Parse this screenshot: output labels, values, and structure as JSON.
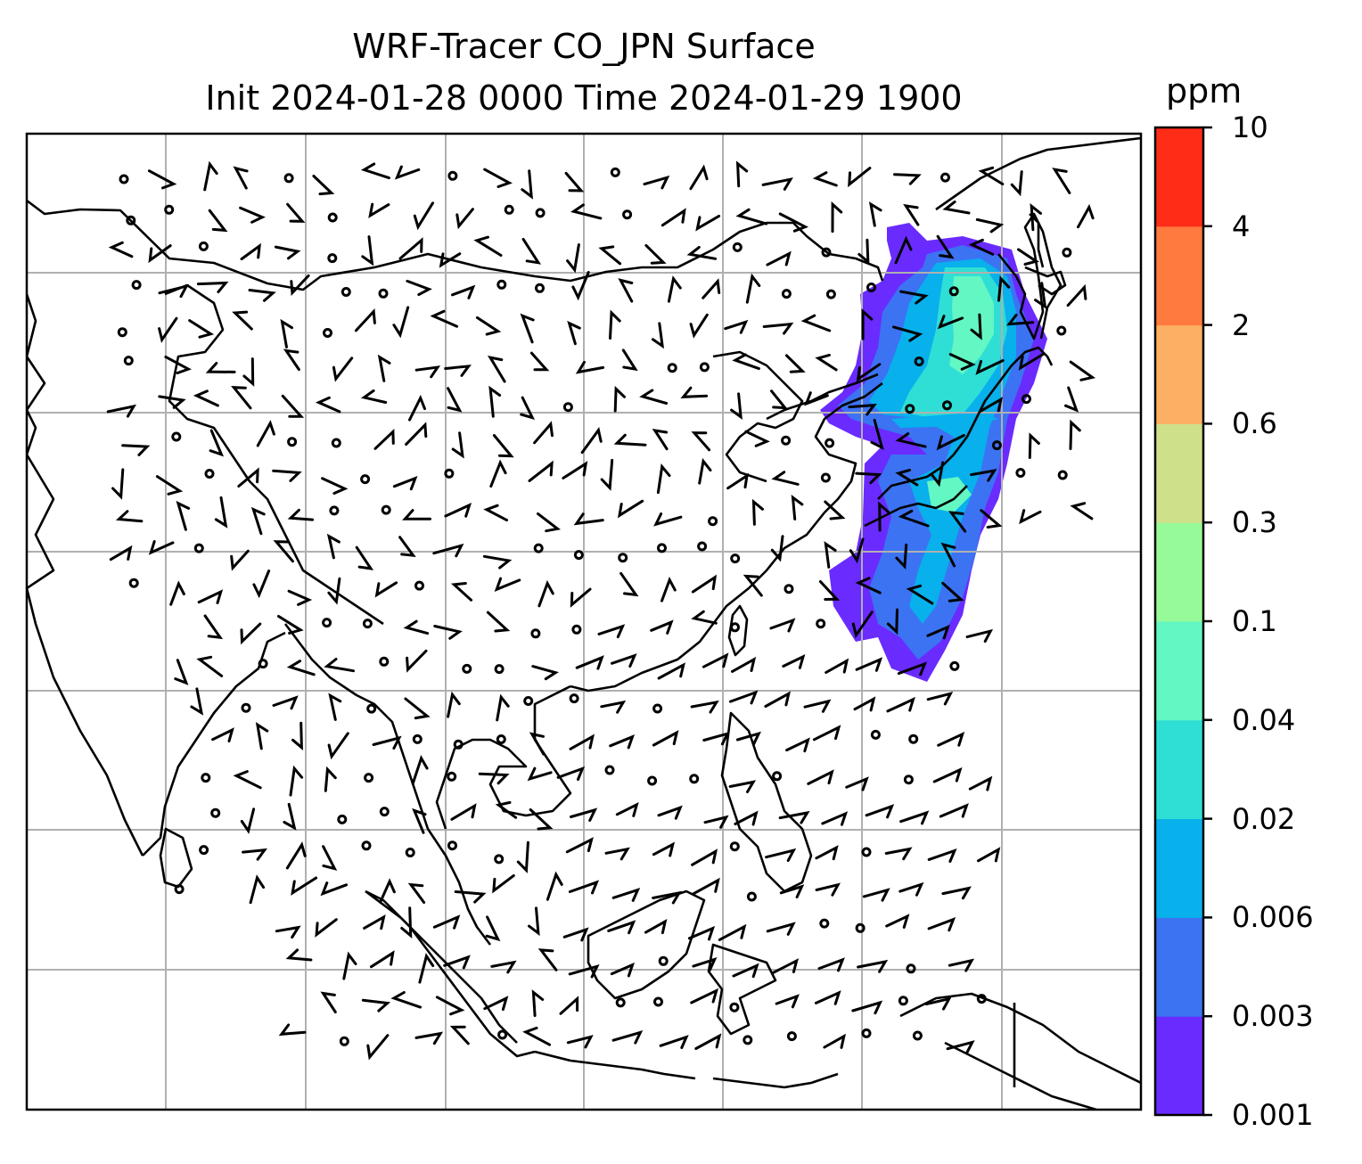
{
  "title": {
    "line1": "WRF-Tracer CO_JPN Surface",
    "line2": "Init 2024-01-28 0000 Time 2024-01-29 1900"
  },
  "colorbar": {
    "unit": "ppm",
    "levels": [
      "0.001",
      "0.003",
      "0.006",
      "0.02",
      "0.04",
      "0.1",
      "0.3",
      "0.6",
      "2",
      "4",
      "10"
    ],
    "colors": [
      "#6a2bff",
      "#3b73f3",
      "#08b0ec",
      "#2fdfd5",
      "#63f7c3",
      "#97fa98",
      "#cfe08a",
      "#fdaf63",
      "#ff7a3f",
      "#ff2c18"
    ]
  },
  "map": {
    "grid_color": "#b0b0b0",
    "coastline_color": "#000000",
    "wind_barbs": "black"
  }
}
